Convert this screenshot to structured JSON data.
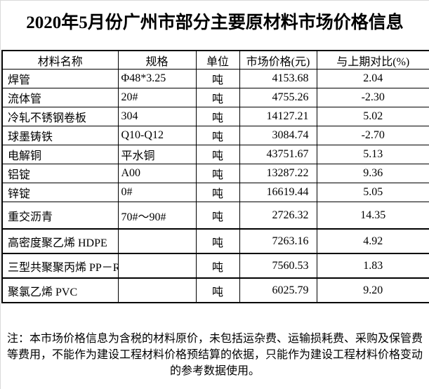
{
  "title": "2020年5月份广州市部分主要原材料市场价格信息",
  "table": {
    "headers": [
      "材料名称",
      "规格",
      "单位",
      "市场价格(元)",
      "与上期对比(%)"
    ],
    "rows": [
      [
        "焊管",
        "Φ48*3.25",
        "吨",
        "4153.68",
        "2.04"
      ],
      [
        "流体管",
        "20#",
        "吨",
        "4755.26",
        "-2.30"
      ],
      [
        "冷轧不锈钢卷板",
        "304",
        "吨",
        "14127.21",
        "5.02"
      ],
      [
        "球墨铸铁",
        "Q10-Q12",
        "吨",
        "3084.74",
        "-2.70"
      ],
      [
        "电解铜",
        "平水铜",
        "吨",
        "43751.67",
        "5.13"
      ],
      [
        "铝锭",
        "A00",
        "吨",
        "13287.22",
        "9.36"
      ],
      [
        "锌锭",
        "0#",
        "吨",
        "16619.44",
        "5.05"
      ],
      [
        "重交沥青",
        "70#～90#",
        "吨",
        "2726.32",
        "14.35"
      ],
      [
        "高密度聚乙烯 HDPE",
        "",
        "吨",
        "7263.16",
        "4.92"
      ],
      [
        "三型共聚聚丙烯 PP－R",
        "",
        "吨",
        "7560.53",
        "1.83"
      ],
      [
        "聚氯乙烯 PVC",
        "",
        "吨",
        "6025.79",
        "9.20"
      ]
    ]
  },
  "note": "注：本市场价格信息为含税的材料原价，未包括运杂费、运输损耗费、采购及保管费等费用，不能作为建设工程材料价格预结算的依据，只能作为建设工程材料价格变动的参考数据使用。",
  "colors": {
    "text": "#000000",
    "border": "#000000",
    "background": "#ffffff",
    "page_gridline": "#d9d9d9"
  }
}
